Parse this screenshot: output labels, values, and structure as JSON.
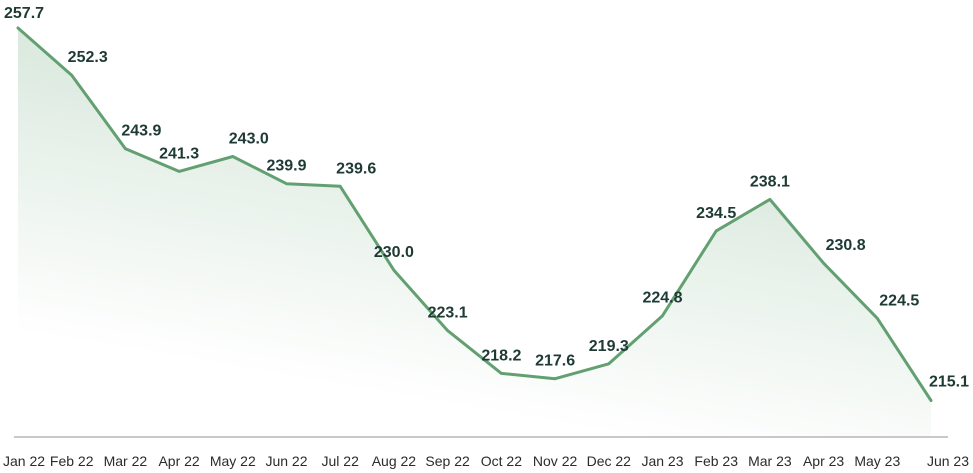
{
  "chart_data": {
    "type": "area",
    "title": "",
    "xlabel": "",
    "ylabel": "",
    "categories": [
      "Jan 22",
      "Feb 22",
      "Mar 22",
      "Apr 22",
      "May 22",
      "Jun 22",
      "Jul 22",
      "Aug 22",
      "Sep 22",
      "Oct 22",
      "Nov 22",
      "Dec 22",
      "Jan 23",
      "Feb 23",
      "Mar 23",
      "Apr 23",
      "May 23",
      "Jun 23"
    ],
    "values": [
      257.7,
      252.3,
      243.9,
      241.3,
      243.0,
      239.9,
      239.6,
      230.0,
      223.1,
      218.2,
      217.6,
      219.3,
      224.8,
      234.5,
      238.1,
      230.8,
      224.5,
      215.1
    ],
    "value_labels": [
      "257.7",
      "252.3",
      "243.9",
      "241.3",
      "243.0",
      "239.9",
      "239.6",
      "230.0",
      "223.1",
      "218.2",
      "217.6",
      "219.3",
      "224.8",
      "234.5",
      "238.1",
      "230.8",
      "224.5",
      "215.1"
    ],
    "ylim": [
      213.1,
      257.7
    ],
    "grid": false,
    "line_color": "#62a071",
    "fill_color": "#62a071",
    "axis_color": "#c8c8c8"
  }
}
